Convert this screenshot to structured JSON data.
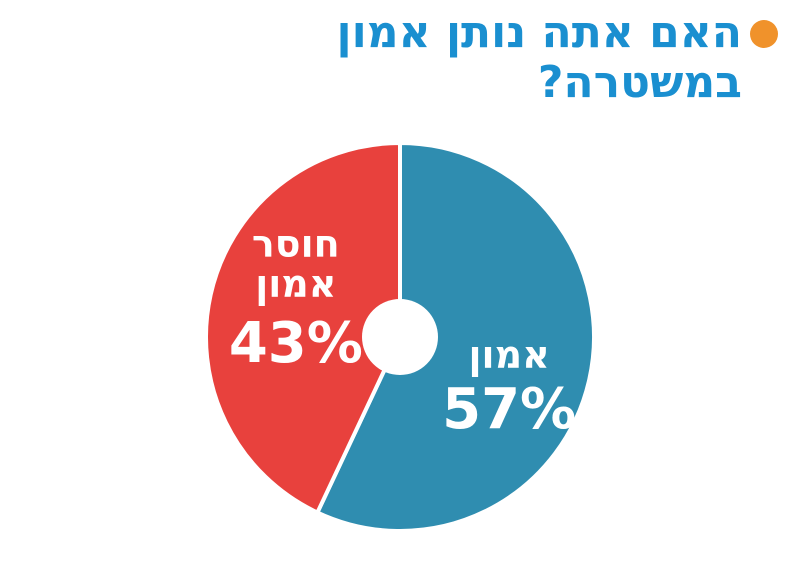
{
  "chart_data": {
    "type": "pie",
    "title": "האם אתה נותן אמון במשטרה?",
    "categories": [
      "אמון",
      "חוסר אמון"
    ],
    "values": [
      57,
      43
    ],
    "value_labels": [
      "57%",
      "43%"
    ],
    "colors": [
      "#2f8db0",
      "#e8413d"
    ]
  }
}
